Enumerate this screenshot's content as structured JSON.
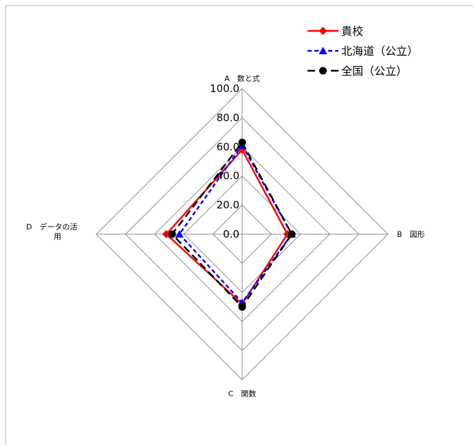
{
  "chart_data": {
    "type": "radar",
    "categories": [
      "A　数と式",
      "B　図形",
      "C　関数",
      "D　データの活用"
    ],
    "category_label_lines": [
      [
        "A　数と式"
      ],
      [
        "B　図形"
      ],
      [
        "C　関数"
      ],
      [
        "D　データの活",
        "用"
      ]
    ],
    "rlim": [
      0,
      100
    ],
    "ticks": [
      "0.0",
      "20.0",
      "40.0",
      "60.0",
      "80.0",
      "100.0"
    ],
    "tick_values": [
      0,
      20,
      40,
      60,
      80,
      100
    ],
    "grid": true,
    "legend_position": "top-right",
    "series": [
      {
        "name": "貴校",
        "values": [
          58,
          31,
          48,
          52
        ],
        "color": "#ff0000",
        "dash": "solid",
        "marker": "diamond"
      },
      {
        "name": "北海道（公立）",
        "values": [
          61,
          34,
          47,
          43
        ],
        "color": "#0000ff",
        "dash": "dashed",
        "marker": "triangle"
      },
      {
        "name": "全国（公立）",
        "values": [
          63,
          34,
          50,
          48
        ],
        "color": "#000000",
        "dash": "longdash",
        "marker": "circle"
      }
    ]
  }
}
